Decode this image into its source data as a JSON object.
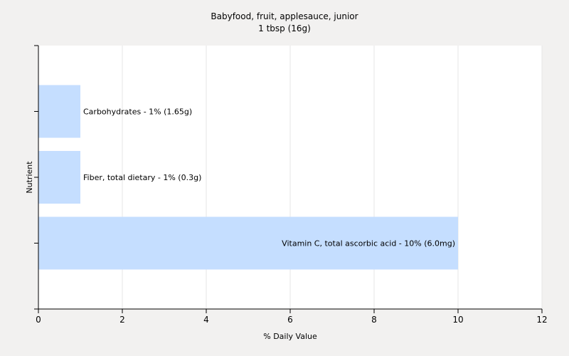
{
  "chart_data": {
    "type": "bar",
    "orientation": "horizontal",
    "title": "Babyfood, fruit, applesauce, junior",
    "subtitle": "1 tbsp (16g)",
    "xlabel": "% Daily Value",
    "ylabel": "Nutrient",
    "xlim": [
      0,
      12
    ],
    "xticks": [
      0,
      2,
      4,
      6,
      8,
      10,
      12
    ],
    "grid": true,
    "bar_color": "#c5deff",
    "categories": [
      "Carbohydrates",
      "Fiber, total dietary",
      "Vitamin C, total ascorbic acid"
    ],
    "values": [
      1,
      1,
      10
    ],
    "labels": [
      "Carbohydrates - 1% (1.65g)",
      "Fiber, total dietary - 1% (0.3g)",
      "Vitamin C, total ascorbic acid - 10% (6.0mg)"
    ]
  }
}
